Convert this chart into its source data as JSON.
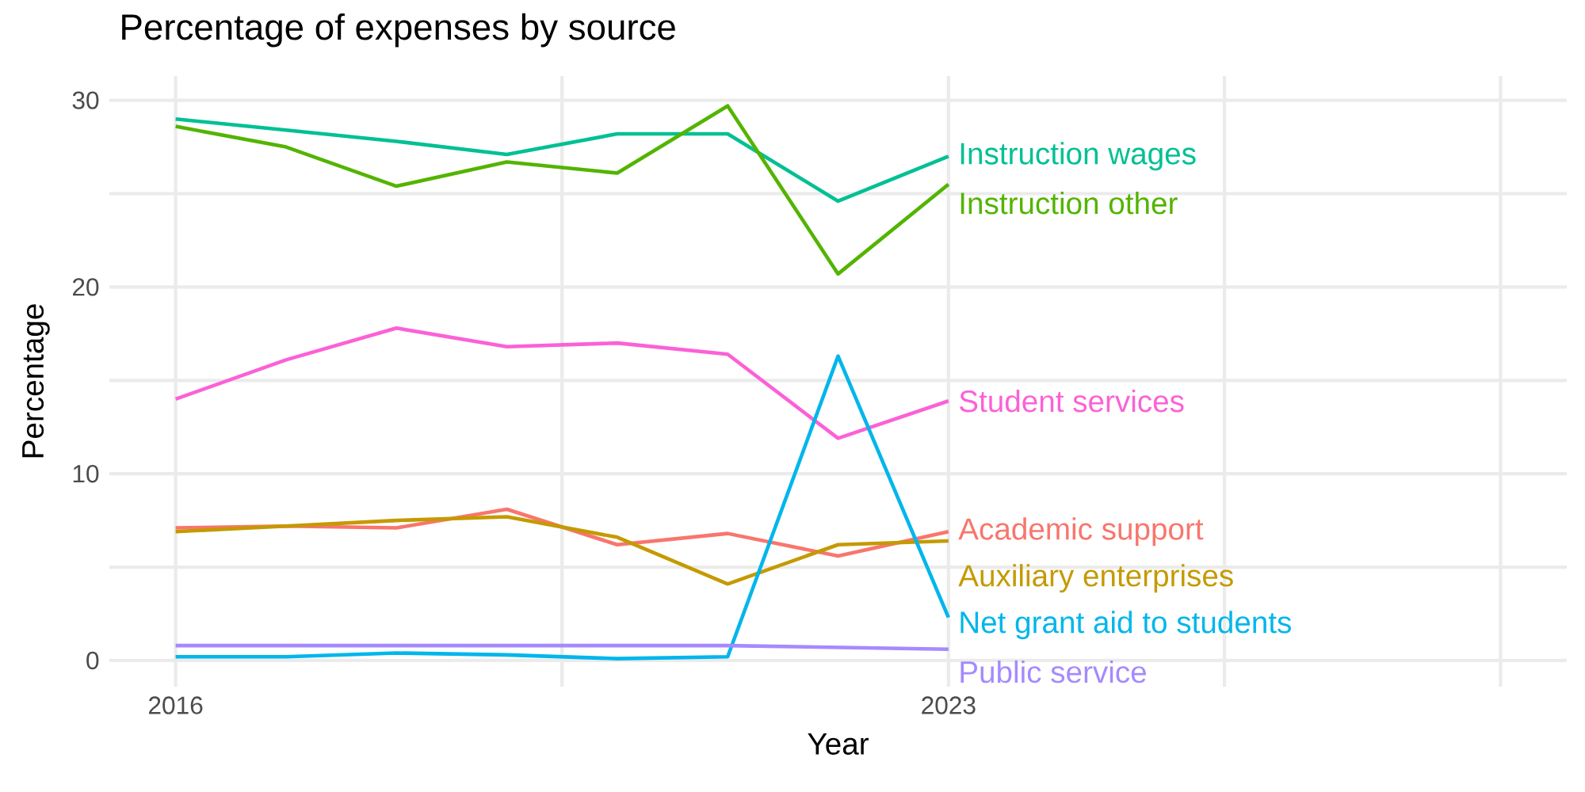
{
  "chart_data": {
    "type": "line",
    "title": "Percentage of expenses by source",
    "xlabel": "Year",
    "ylabel": "Percentage",
    "x": [
      2016,
      2017,
      2018,
      2019,
      2020,
      2021,
      2022,
      2023
    ],
    "series": [
      {
        "name": "Instruction wages",
        "color": "#00C094",
        "values": [
          29.0,
          28.4,
          27.8,
          27.1,
          28.2,
          28.2,
          24.6,
          27.0
        ]
      },
      {
        "name": "Instruction other",
        "color": "#53B400",
        "values": [
          28.6,
          27.5,
          25.4,
          26.7,
          26.1,
          29.7,
          20.7,
          25.5
        ]
      },
      {
        "name": "Student services",
        "color": "#FB61D7",
        "values": [
          14.0,
          16.1,
          17.8,
          16.8,
          17.0,
          16.4,
          11.9,
          13.9
        ]
      },
      {
        "name": "Academic support",
        "color": "#F8766D",
        "values": [
          7.1,
          7.2,
          7.1,
          8.1,
          6.2,
          6.8,
          5.6,
          6.9
        ]
      },
      {
        "name": "Auxiliary enterprises",
        "color": "#C49A00",
        "values": [
          6.9,
          7.2,
          7.5,
          7.7,
          6.6,
          4.1,
          6.2,
          6.4
        ]
      },
      {
        "name": "Net grant aid to students",
        "color": "#00B6EB",
        "values": [
          0.2,
          0.2,
          0.4,
          0.3,
          0.1,
          0.2,
          16.3,
          2.3
        ]
      },
      {
        "name": "Public service",
        "color": "#A58AFF",
        "values": [
          0.8,
          0.8,
          0.8,
          0.8,
          0.8,
          0.8,
          0.7,
          0.6
        ]
      }
    ],
    "xlim": [
      2015.4,
      2028.6
    ],
    "ylim": [
      -1.4,
      31.3
    ],
    "xticks": [
      2016,
      {
        "value": 2019.5,
        "label": null
      },
      2023,
      {
        "value": 2025.5,
        "label": null
      },
      {
        "value": 2028,
        "label": null
      }
    ],
    "yticks": [
      0,
      {
        "value": 5,
        "label": null
      },
      10,
      {
        "value": 15,
        "label": null
      },
      20,
      {
        "value": 25,
        "label": null
      },
      30
    ],
    "grid": true,
    "marker": "none",
    "line_style": "solid"
  }
}
